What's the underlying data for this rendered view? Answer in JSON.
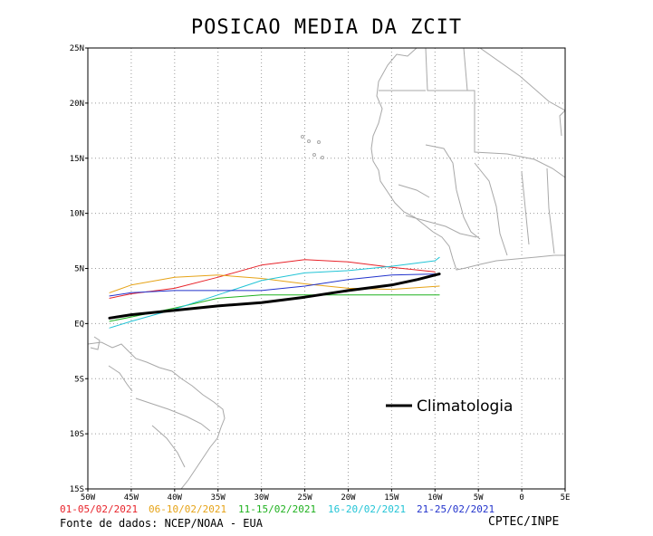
{
  "title": "POSICAO MEDIA DA ZCIT",
  "map": {
    "lon_range": [
      -50,
      5
    ],
    "lat_range": [
      -15,
      25
    ],
    "x_ticks": [
      "50W",
      "45W",
      "40W",
      "35W",
      "30W",
      "25W",
      "20W",
      "15W",
      "10W",
      "5W",
      "0",
      "5E"
    ],
    "y_ticks": [
      "25N",
      "20N",
      "15N",
      "10N",
      "5N",
      "EQ",
      "5S",
      "10S",
      "15S"
    ],
    "grid": true,
    "land_color": "#a8a8a8"
  },
  "chart_data": {
    "type": "line",
    "xlim": [
      -50,
      5
    ],
    "ylim": [
      -15,
      25
    ],
    "series": [
      {
        "name": "01-05/02/2021",
        "color": "#e8232a",
        "points": [
          [
            -47.5,
            2.3
          ],
          [
            -45,
            2.7
          ],
          [
            -40,
            3.2
          ],
          [
            -35,
            4.2
          ],
          [
            -30,
            5.3
          ],
          [
            -25,
            5.8
          ],
          [
            -20,
            5.6
          ],
          [
            -15,
            5.1
          ],
          [
            -10,
            4.7
          ]
        ]
      },
      {
        "name": "06-10/02/2021",
        "color": "#e6a317",
        "points": [
          [
            -47.5,
            2.8
          ],
          [
            -45,
            3.5
          ],
          [
            -40,
            4.2
          ],
          [
            -35,
            4.4
          ],
          [
            -30,
            4.1
          ],
          [
            -25,
            3.6
          ],
          [
            -20,
            3.2
          ],
          [
            -15,
            3.1
          ],
          [
            -9.5,
            3.4
          ]
        ]
      },
      {
        "name": "11-15/02/2021",
        "color": "#1fb11f",
        "points": [
          [
            -47.5,
            0.2
          ],
          [
            -45,
            0.6
          ],
          [
            -40,
            1.4
          ],
          [
            -35,
            2.3
          ],
          [
            -30,
            2.6
          ],
          [
            -25,
            2.6
          ],
          [
            -20,
            2.6
          ],
          [
            -15,
            2.6
          ],
          [
            -9.5,
            2.6
          ]
        ]
      },
      {
        "name": "16-20/02/2021",
        "color": "#22c4d6",
        "points": [
          [
            -47.5,
            -0.4
          ],
          [
            -45,
            0.2
          ],
          [
            -40,
            1.3
          ],
          [
            -35,
            2.6
          ],
          [
            -30,
            3.9
          ],
          [
            -25,
            4.6
          ],
          [
            -20,
            4.8
          ],
          [
            -15,
            5.2
          ],
          [
            -10,
            5.7
          ],
          [
            -9.5,
            6.0
          ]
        ]
      },
      {
        "name": "21-25/02/2021",
        "color": "#2233cc",
        "points": [
          [
            -47.5,
            2.5
          ],
          [
            -45,
            2.8
          ],
          [
            -40,
            3.0
          ],
          [
            -35,
            3.0
          ],
          [
            -30,
            3.0
          ],
          [
            -25,
            3.4
          ],
          [
            -20,
            4.0
          ],
          [
            -15,
            4.4
          ],
          [
            -10,
            4.5
          ],
          [
            -9.5,
            4.4
          ]
        ]
      },
      {
        "name": "Climatologia",
        "color": "#000000",
        "points": [
          [
            -47.5,
            0.5
          ],
          [
            -45,
            0.8
          ],
          [
            -40,
            1.2
          ],
          [
            -35,
            1.6
          ],
          [
            -30,
            1.9
          ],
          [
            -25,
            2.4
          ],
          [
            -20,
            3.0
          ],
          [
            -15,
            3.5
          ],
          [
            -12,
            4.0
          ],
          [
            -9.5,
            4.5
          ]
        ]
      }
    ],
    "annotation": "Climatologia"
  },
  "legend": [
    {
      "label": "01-05/02/2021",
      "color": "#e8232a"
    },
    {
      "label": "06-10/02/2021",
      "color": "#e6a317"
    },
    {
      "label": "11-15/02/2021",
      "color": "#1fb11f"
    },
    {
      "label": "16-20/02/2021",
      "color": "#22c4d6"
    },
    {
      "label": "21-25/02/2021",
      "color": "#2233cc"
    }
  ],
  "footer": {
    "source": "Fonte de dados: NCEP/NOAA - EUA",
    "credit": "CPTEC/INPE"
  }
}
